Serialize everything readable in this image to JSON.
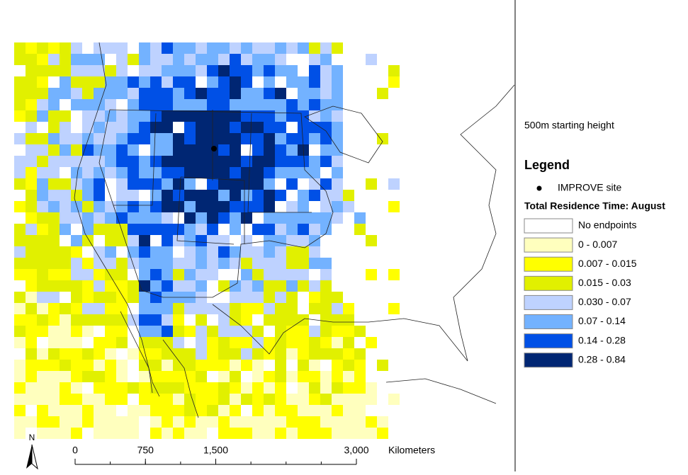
{
  "subtitle": "500m starting height",
  "legend": {
    "title": "Legend",
    "site": "IMPROVE site",
    "heading": "Total Residence Time: August",
    "classes": [
      {
        "label": "No endpoints",
        "color": "#ffffff"
      },
      {
        "label": "0 - 0.007",
        "color": "#ffffbe"
      },
      {
        "label": "0.007 - 0.015",
        "color": "#ffff00"
      },
      {
        "label": "0.015 - 0.03",
        "color": "#e1f000"
      },
      {
        "label": "0.030 - 0.07",
        "color": "#bed2ff"
      },
      {
        "label": "0.07 - 0.14",
        "color": "#73b2ff"
      },
      {
        "label": "0.14 - 0.28",
        "color": "#0050e6"
      },
      {
        "label": "0.28 - 0.84",
        "color": "#002673"
      }
    ]
  },
  "scale_bar": {
    "ticks": [
      0,
      750,
      {
        "value": 1500,
        "label": "1,500"
      },
      {
        "value": 3000,
        "label": "3,000"
      }
    ],
    "unit": "Kilometers"
  },
  "north": "N"
}
